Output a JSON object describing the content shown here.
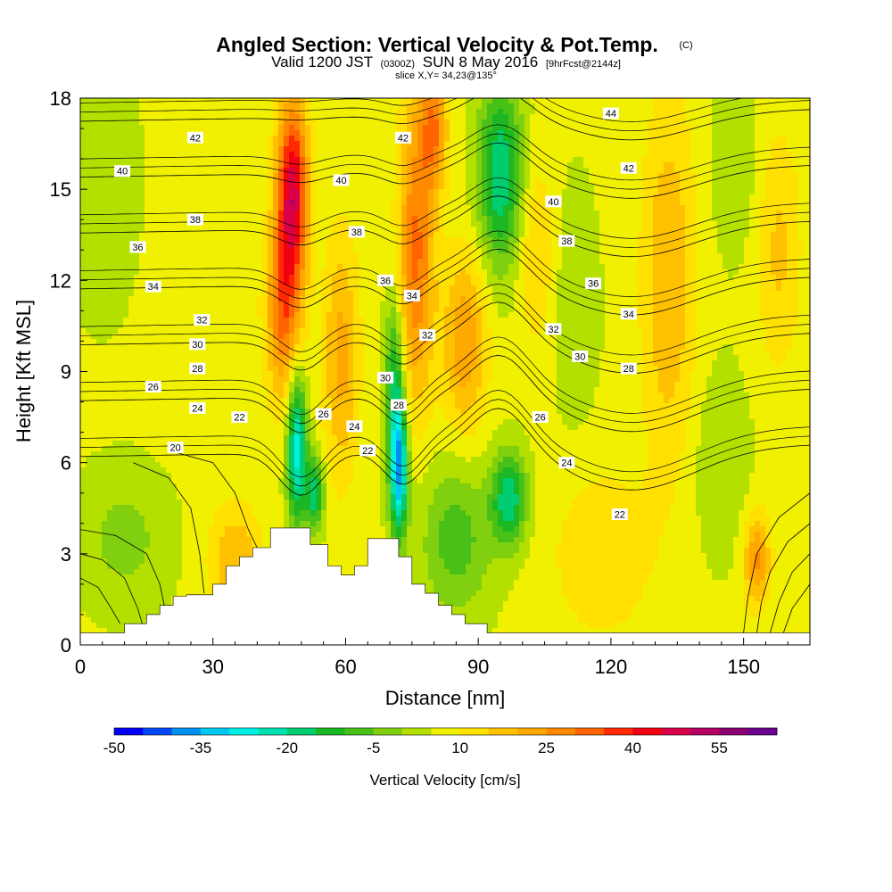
{
  "chart_data": {
    "type": "heatmap",
    "title": "Angled Section: Vertical Velocity & Pot.Temp.",
    "title_mark": "(C)",
    "subtitle_parts": [
      "Valid 1200 JST",
      "(0300Z)",
      "SUN 8 May 2016",
      "[9hrFcst@2144z]"
    ],
    "slice_label": "slice X,Y= 34,23@135°",
    "xlabel": "Distance [nm]",
    "ylabel": "Height [Kft MSL]",
    "xlim": [
      0,
      165
    ],
    "ylim": [
      0,
      18
    ],
    "x_ticks": [
      0,
      30,
      60,
      90,
      120,
      150
    ],
    "y_ticks": [
      0,
      3,
      6,
      9,
      12,
      15,
      18
    ],
    "x_tick_labels": [
      "0",
      "30",
      "60",
      "90",
      "120",
      "150"
    ],
    "y_tick_labels": [
      "0",
      "3",
      "6",
      "9",
      "12",
      "15",
      "18"
    ],
    "colorbar": {
      "title": "Vertical Velocity [cm/s]",
      "min": -50,
      "step": 5,
      "tick_labels": [
        "-50",
        "-35",
        "-20",
        "-5",
        "10",
        "25",
        "40",
        "55"
      ],
      "tick_values": [
        -50,
        -35,
        -20,
        -5,
        10,
        25,
        40,
        55
      ],
      "colors": [
        "#0000f5",
        "#0048f5",
        "#0090f0",
        "#00c8f0",
        "#00f0e6",
        "#00e0b0",
        "#00cc70",
        "#1cb824",
        "#48c018",
        "#80d010",
        "#b4e000",
        "#f0f000",
        "#ffe000",
        "#ffc000",
        "#ffa800",
        "#ff8a00",
        "#ff6400",
        "#ff2800",
        "#f00010",
        "#d8004a",
        "#b40064",
        "#8a0070",
        "#6c0090"
      ]
    },
    "terrain": [
      [
        0,
        0.4
      ],
      [
        10,
        0.4
      ],
      [
        10,
        0.7
      ],
      [
        15,
        0.7
      ],
      [
        15,
        1.0
      ],
      [
        18,
        1.0
      ],
      [
        18,
        1.3
      ],
      [
        21,
        1.3
      ],
      [
        21,
        1.6
      ],
      [
        24,
        1.6
      ],
      [
        24,
        1.65
      ],
      [
        30,
        1.65
      ],
      [
        30,
        2.0
      ],
      [
        33,
        2.0
      ],
      [
        33,
        2.6
      ],
      [
        36,
        2.6
      ],
      [
        36,
        2.9
      ],
      [
        39,
        2.9
      ],
      [
        39,
        3.2
      ],
      [
        43,
        3.2
      ],
      [
        43,
        3.85
      ],
      [
        52,
        3.85
      ],
      [
        52,
        3.3
      ],
      [
        56,
        3.3
      ],
      [
        56,
        2.6
      ],
      [
        59,
        2.6
      ],
      [
        59,
        2.3
      ],
      [
        62,
        2.3
      ],
      [
        62,
        2.6
      ],
      [
        65,
        2.6
      ],
      [
        65,
        3.5
      ],
      [
        72,
        3.5
      ],
      [
        72,
        2.9
      ],
      [
        75,
        2.9
      ],
      [
        75,
        2.0
      ],
      [
        78,
        2.0
      ],
      [
        78,
        1.7
      ],
      [
        81,
        1.7
      ],
      [
        81,
        1.3
      ],
      [
        84,
        1.3
      ],
      [
        84,
        1.0
      ],
      [
        87,
        1.0
      ],
      [
        87,
        0.7
      ],
      [
        92,
        0.7
      ],
      [
        92,
        0.4
      ],
      [
        165,
        0.4
      ]
    ],
    "theta_levels": [
      20,
      22,
      24,
      26,
      28,
      30,
      32,
      34,
      36,
      38,
      40,
      42,
      44
    ],
    "theta_labels": [
      {
        "text": "42",
        "x": 26,
        "y": 16.7
      },
      {
        "text": "40",
        "x": 9.5,
        "y": 15.6
      },
      {
        "text": "38",
        "x": 26,
        "y": 14.0
      },
      {
        "text": "36",
        "x": 13,
        "y": 13.1
      },
      {
        "text": "34",
        "x": 16.5,
        "y": 11.8
      },
      {
        "text": "32",
        "x": 27.5,
        "y": 10.7
      },
      {
        "text": "30",
        "x": 26.5,
        "y": 9.9
      },
      {
        "text": "28",
        "x": 26.5,
        "y": 9.1
      },
      {
        "text": "26",
        "x": 16.5,
        "y": 8.5
      },
      {
        "text": "24",
        "x": 26.5,
        "y": 7.8
      },
      {
        "text": "22",
        "x": 36,
        "y": 7.5
      },
      {
        "text": "20",
        "x": 21.5,
        "y": 6.5
      },
      {
        "text": "40",
        "x": 59,
        "y": 15.3
      },
      {
        "text": "38",
        "x": 62.5,
        "y": 13.6
      },
      {
        "text": "42",
        "x": 73,
        "y": 16.7
      },
      {
        "text": "36",
        "x": 69,
        "y": 12.0
      },
      {
        "text": "34",
        "x": 75,
        "y": 11.5
      },
      {
        "text": "32",
        "x": 78.5,
        "y": 10.2
      },
      {
        "text": "30",
        "x": 69,
        "y": 8.8
      },
      {
        "text": "28",
        "x": 72,
        "y": 7.9
      },
      {
        "text": "26",
        "x": 55,
        "y": 7.6
      },
      {
        "text": "24",
        "x": 62,
        "y": 7.2
      },
      {
        "text": "22",
        "x": 65,
        "y": 6.4
      },
      {
        "text": "44",
        "x": 120,
        "y": 17.5
      },
      {
        "text": "42",
        "x": 124,
        "y": 15.7
      },
      {
        "text": "40",
        "x": 107,
        "y": 14.6
      },
      {
        "text": "38",
        "x": 110,
        "y": 13.3
      },
      {
        "text": "36",
        "x": 116,
        "y": 11.9
      },
      {
        "text": "34",
        "x": 124,
        "y": 10.9
      },
      {
        "text": "32",
        "x": 107,
        "y": 10.4
      },
      {
        "text": "30",
        "x": 113,
        "y": 9.5
      },
      {
        "text": "28",
        "x": 124,
        "y": 9.1
      },
      {
        "text": "26",
        "x": 104,
        "y": 7.5
      },
      {
        "text": "24",
        "x": 110,
        "y": 6.0
      },
      {
        "text": "22",
        "x": 122,
        "y": 4.3
      }
    ],
    "w_features": [
      {
        "note": "background",
        "x": 0,
        "y": 0,
        "w": 6
      },
      {
        "x": 10,
        "y": 3.5,
        "w": -8,
        "sx": 10,
        "sy": 2.2
      },
      {
        "x": 35,
        "y": 2.8,
        "w": 14,
        "sx": 6,
        "sy": 1.8
      },
      {
        "x": 25,
        "y": 12,
        "w": 1,
        "sx": 10,
        "sy": 5
      },
      {
        "x": 5,
        "y": 15,
        "w": -5,
        "sx": 8,
        "sy": 4
      },
      {
        "x": 48,
        "y": 15,
        "w": 40,
        "sx": 3.5,
        "sy": 3
      },
      {
        "x": 46,
        "y": 11,
        "w": 25,
        "sx": 4,
        "sy": 3
      },
      {
        "x": 49,
        "y": 6.5,
        "w": -34,
        "sx": 2.2,
        "sy": 2.5
      },
      {
        "x": 53,
        "y": 5.0,
        "w": -25,
        "sx": 2,
        "sy": 1.2
      },
      {
        "x": 59,
        "y": 9.5,
        "w": 16,
        "sx": 4,
        "sy": 4
      },
      {
        "x": 72,
        "y": 5.8,
        "w": -42,
        "sx": 2,
        "sy": 2.2
      },
      {
        "x": 71,
        "y": 9.0,
        "w": -20,
        "sx": 2,
        "sy": 2.5
      },
      {
        "x": 76,
        "y": 13,
        "w": 25,
        "sx": 4,
        "sy": 5
      },
      {
        "x": 80,
        "y": 17,
        "w": 22,
        "sx": 3,
        "sy": 2
      },
      {
        "x": 87,
        "y": 10,
        "w": 18,
        "sx": 5,
        "sy": 3
      },
      {
        "x": 95,
        "y": 15.5,
        "w": -26,
        "sx": 5,
        "sy": 3
      },
      {
        "x": 97,
        "y": 4.8,
        "w": -25,
        "sx": 4,
        "sy": 1.5
      },
      {
        "x": 85,
        "y": 3.5,
        "w": -14,
        "sx": 8,
        "sy": 2.5
      },
      {
        "x": 112,
        "y": 11,
        "w": -5,
        "sx": 5,
        "sy": 4
      },
      {
        "x": 103,
        "y": 13,
        "w": 10,
        "sx": 4,
        "sy": 3
      },
      {
        "x": 118,
        "y": 3,
        "w": 8,
        "sx": 12,
        "sy": 3
      },
      {
        "x": 133,
        "y": 12,
        "w": 14,
        "sx": 6,
        "sy": 6
      },
      {
        "x": 148,
        "y": 16,
        "w": -6,
        "sx": 5,
        "sy": 3
      },
      {
        "x": 158,
        "y": 13,
        "w": 10,
        "sx": 5,
        "sy": 4
      },
      {
        "x": 153,
        "y": 2.8,
        "w": 20,
        "sx": 3,
        "sy": 1.5
      },
      {
        "x": 145,
        "y": 6,
        "w": -6,
        "sx": 6,
        "sy": 3
      }
    ]
  }
}
